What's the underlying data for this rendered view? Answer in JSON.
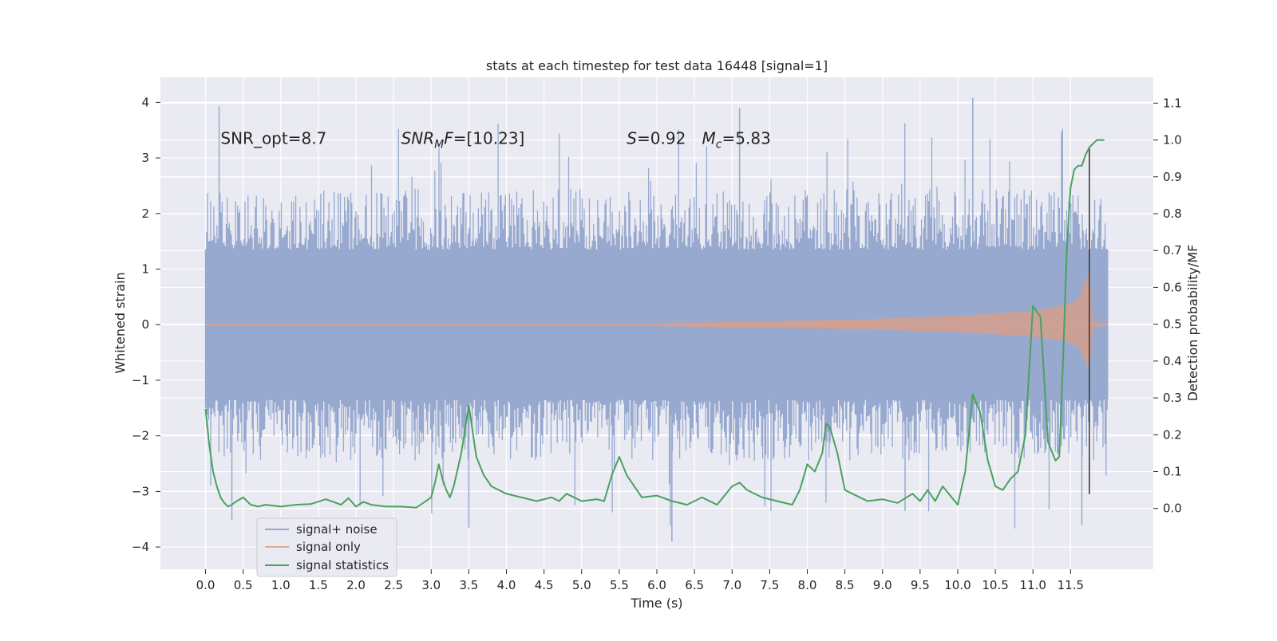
{
  "chart_data": {
    "type": "line",
    "title": "stats at each timestep for test data 16448 [signal=1]",
    "xlabel": "Time (s)",
    "ylabel": "Whitened strain",
    "y2label": "Detection probability/MF",
    "xlim": [
      -0.6,
      12.6
    ],
    "ylim": [
      -4.4,
      4.45
    ],
    "y2lim": [
      -0.165,
      1.17
    ],
    "x_ticks": [
      "0.0",
      "0.5",
      "1.0",
      "1.5",
      "2.0",
      "2.5",
      "3.0",
      "3.5",
      "4.0",
      "4.5",
      "5.0",
      "5.5",
      "6.0",
      "6.5",
      "7.0",
      "7.5",
      "8.0",
      "8.5",
      "9.0",
      "9.5",
      "10.0",
      "10.5",
      "11.0",
      "11.5"
    ],
    "y_ticks": [
      "4",
      "3",
      "2",
      "1",
      "0",
      "−1",
      "−2",
      "−3",
      "−4"
    ],
    "y2_ticks": [
      "1.1",
      "1.0",
      "0.9",
      "0.8",
      "0.7",
      "0.6",
      "0.5",
      "0.4",
      "0.3",
      "0.2",
      "0.1",
      "0.0"
    ],
    "grid": true,
    "legend_position": "lower-left",
    "annotations": [
      {
        "id": "snr-opt",
        "parts": [
          {
            "t": "SNR_opt=8.7",
            "style": "normal"
          }
        ]
      },
      {
        "id": "snr-mf",
        "parts": [
          {
            "t": "SNR",
            "style": "italic"
          },
          {
            "t": "M",
            "style": "italic-sub"
          },
          {
            "t": "F",
            "style": "italic"
          },
          {
            "t": "=[10.23]",
            "style": "normal"
          }
        ]
      },
      {
        "id": "s-value",
        "parts": [
          {
            "t": "S",
            "style": "italic"
          },
          {
            "t": "=0.92",
            "style": "normal"
          }
        ]
      },
      {
        "id": "mc-value",
        "parts": [
          {
            "t": "M",
            "style": "italic"
          },
          {
            "t": "c",
            "style": "italic-sub"
          },
          {
            "t": "=5.83",
            "style": "normal"
          }
        ]
      }
    ],
    "series": [
      {
        "name": "signal+ noise",
        "color": "#97a9cf",
        "axis": "left",
        "kind": "noise",
        "x_range": [
          0.0,
          12.0
        ],
        "band": [
          -1.35,
          1.35
        ],
        "typical_peak": 2.5,
        "max": 4.08,
        "min": -3.92
      },
      {
        "name": "signal only",
        "color": "#d8a294",
        "axis": "left",
        "kind": "chirp",
        "x_range": [
          0.0,
          12.0
        ],
        "envelope_x": [
          0,
          6,
          7,
          8,
          9,
          10,
          11,
          11.4,
          11.6,
          11.75,
          11.8,
          12.0
        ],
        "envelope": [
          0.02,
          0.03,
          0.05,
          0.08,
          0.11,
          0.16,
          0.25,
          0.34,
          0.45,
          0.98,
          0.05,
          0.02
        ]
      },
      {
        "name": "signal statistics",
        "color": "#4aa160",
        "axis": "right",
        "kind": "line",
        "x": [
          0.0,
          0.05,
          0.1,
          0.15,
          0.2,
          0.25,
          0.3,
          0.35,
          0.4,
          0.5,
          0.6,
          0.7,
          0.8,
          1.0,
          1.2,
          1.4,
          1.6,
          1.8,
          1.9,
          2.0,
          2.1,
          2.2,
          2.4,
          2.6,
          2.8,
          3.0,
          3.05,
          3.1,
          3.15,
          3.2,
          3.25,
          3.3,
          3.4,
          3.5,
          3.6,
          3.7,
          3.8,
          4.0,
          4.2,
          4.4,
          4.6,
          4.7,
          4.8,
          5.0,
          5.2,
          5.3,
          5.4,
          5.5,
          5.6,
          5.8,
          6.0,
          6.2,
          6.4,
          6.6,
          6.8,
          7.0,
          7.1,
          7.2,
          7.4,
          7.6,
          7.8,
          7.9,
          8.0,
          8.1,
          8.2,
          8.25,
          8.3,
          8.4,
          8.5,
          8.6,
          8.8,
          9.0,
          9.2,
          9.4,
          9.5,
          9.6,
          9.7,
          9.8,
          10.0,
          10.1,
          10.2,
          10.3,
          10.4,
          10.5,
          10.6,
          10.7,
          10.8,
          10.9,
          11.0,
          11.1,
          11.2,
          11.3,
          11.35,
          11.4,
          11.45,
          11.5,
          11.55,
          11.6,
          11.65,
          11.7,
          11.75,
          11.8,
          11.85,
          11.9,
          11.95
        ],
        "y": [
          0.27,
          0.17,
          0.1,
          0.06,
          0.03,
          0.015,
          0.005,
          0.01,
          0.018,
          0.03,
          0.01,
          0.005,
          0.01,
          0.005,
          0.01,
          0.012,
          0.025,
          0.01,
          0.028,
          0.005,
          0.018,
          0.01,
          0.005,
          0.005,
          0.002,
          0.03,
          0.07,
          0.12,
          0.08,
          0.05,
          0.03,
          0.06,
          0.15,
          0.28,
          0.14,
          0.09,
          0.06,
          0.04,
          0.03,
          0.02,
          0.03,
          0.02,
          0.04,
          0.02,
          0.025,
          0.02,
          0.09,
          0.14,
          0.09,
          0.03,
          0.035,
          0.02,
          0.01,
          0.03,
          0.01,
          0.06,
          0.07,
          0.05,
          0.03,
          0.02,
          0.01,
          0.05,
          0.12,
          0.1,
          0.15,
          0.23,
          0.22,
          0.15,
          0.05,
          0.04,
          0.02,
          0.025,
          0.015,
          0.04,
          0.02,
          0.05,
          0.02,
          0.06,
          0.01,
          0.1,
          0.31,
          0.26,
          0.13,
          0.06,
          0.05,
          0.08,
          0.1,
          0.2,
          0.55,
          0.52,
          0.18,
          0.13,
          0.14,
          0.4,
          0.7,
          0.87,
          0.92,
          0.93,
          0.93,
          0.96,
          0.98,
          0.99,
          1.0,
          1.0,
          1.0
        ]
      }
    ],
    "vertical_marker_x": 11.75
  }
}
